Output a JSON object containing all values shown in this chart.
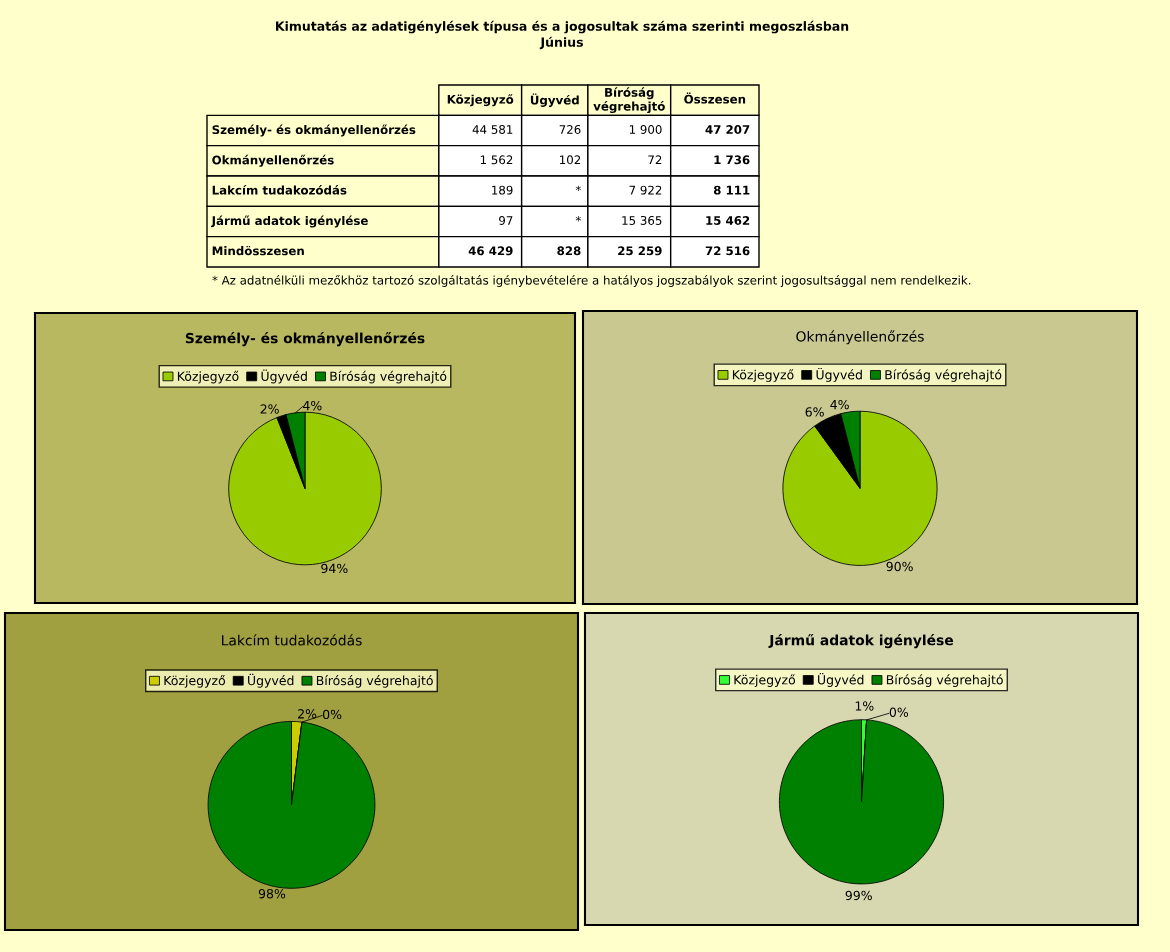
{
  "chart_data": [
    {
      "type": "other",
      "title": "Kimutatás az adatigénylések típusa és a jogosultak száma szerinti megoszlásban",
      "subtitle": "Június",
      "categories": [
        "Közjegyző",
        "Ügyvéd",
        "Bíróság\nvégrehajtó",
        "Összesen"
      ],
      "y_categories": [
        "Személy- és okmányellenőrzés",
        "Okmányellenőrzés",
        "Lakcím tudakozódás",
        "Jármű adatok igénylése",
        "Mindösszesen"
      ],
      "cell_labels": [
        [
          "44 581",
          "726",
          "1 900",
          "47 207"
        ],
        [
          "1 562",
          "102",
          "72",
          "1 736"
        ],
        [
          "189",
          "*",
          "7 922",
          "8 111"
        ],
        [
          "97",
          "*",
          "15 365",
          "15 462"
        ],
        [
          "46 429",
          "828",
          "25 259",
          "72 516"
        ]
      ],
      "annotations": [
        "* Az adatnélküli mezőkhöz tartozó szolgáltatás igénybevételére a hatályos jogszabályok szerint jogosultsággal nem rendelkezik."
      ]
    },
    {
      "type": "pie",
      "title": "Személy- és okmányellenőrzés",
      "categories": [
        "Közjegyző",
        "Ügyvéd",
        "Bíróság végrehajtó"
      ],
      "values": [
        94,
        2,
        4
      ],
      "colors": [
        "#99cc00",
        "#000000",
        "#008000"
      ],
      "value_labels": [
        "94%",
        "2%",
        "4%"
      ],
      "legend": "top"
    },
    {
      "type": "pie",
      "title": "Okmányellenőrzés",
      "categories": [
        "Közjegyző",
        "Ügyvéd",
        "Bíróság végrehajtó"
      ],
      "values": [
        90,
        6,
        4
      ],
      "colors": [
        "#99cc00",
        "#000000",
        "#008000"
      ],
      "value_labels": [
        "90%",
        "6%",
        "4%"
      ],
      "legend": "top"
    },
    {
      "type": "pie",
      "title": "Lakcím tudakozódás",
      "categories": [
        "Közjegyző",
        "Ügyvéd",
        "Bíróság végrehajtó"
      ],
      "values": [
        2,
        0,
        98
      ],
      "colors": [
        "#cccc00",
        "#000000",
        "#008000"
      ],
      "value_labels": [
        "2%",
        "0%",
        "98%"
      ],
      "legend": "top"
    },
    {
      "type": "pie",
      "title": "Jármű adatok igénylése",
      "categories": [
        "Közjegyző",
        "Ügyvéd",
        "Bíróság végrehajtó"
      ],
      "values": [
        1,
        0,
        99
      ],
      "colors": [
        "#33ff33",
        "#000000",
        "#008000"
      ],
      "value_labels": [
        "1%",
        "0%",
        "99%"
      ],
      "legend": "top"
    }
  ]
}
